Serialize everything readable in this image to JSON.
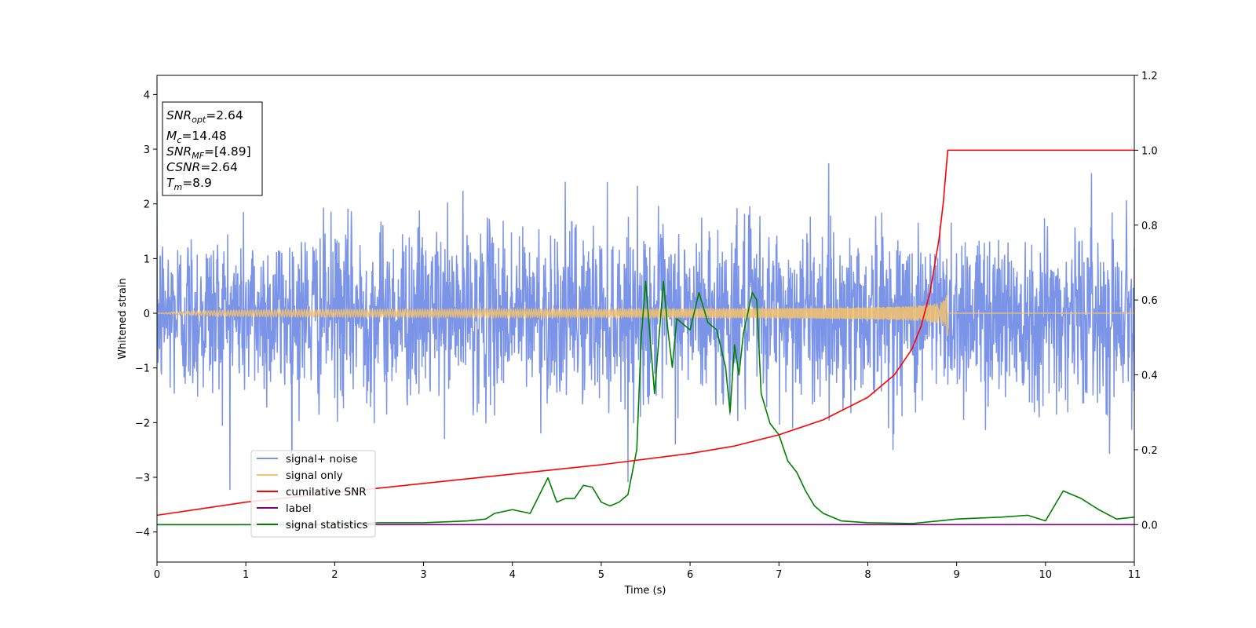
{
  "chart_data": {
    "type": "line",
    "xlabel": "Time (s)",
    "ylabel": "Whitened strain",
    "xlim": [
      0,
      11
    ],
    "ylim": [
      -4.55,
      4.35
    ],
    "y2lim": [
      -0.1,
      1.2
    ],
    "x_ticks": [
      "0",
      "1",
      "2",
      "3",
      "4",
      "5",
      "6",
      "7",
      "8",
      "9",
      "10",
      "11"
    ],
    "y_ticks": [
      "4",
      "3",
      "2",
      "1",
      "0",
      "−1",
      "−2",
      "−3",
      "−4"
    ],
    "y2_ticks": [
      "1.2",
      "1.0",
      "0.8",
      "0.6",
      "0.4",
      "0.2",
      "0.0"
    ],
    "grid": false,
    "legend_position": "lower-left",
    "annotation": {
      "snr_opt": {
        "main": "SNR",
        "sub": "opt",
        "value": "=2.64"
      },
      "mc": {
        "main": "M",
        "sub": "c",
        "value": "=14.48"
      },
      "snr_mf": {
        "main": "SNR",
        "sub": "MF",
        "value": "=[4.89]"
      },
      "csnr": {
        "main": "CSNR",
        "value": "=2.64"
      },
      "tm": {
        "main": "T",
        "sub": "m",
        "value": "=8.9"
      }
    },
    "series": [
      {
        "name": "signal+ noise",
        "color": "#7b94e8",
        "axis": "left",
        "kind": "noise",
        "std": 0.8,
        "clip": [
          -4.2,
          3.95
        ],
        "x_range": [
          0,
          11
        ]
      },
      {
        "name": "signal only",
        "color": "#f5c26b",
        "axis": "left",
        "kind": "chirp",
        "t_merge": 8.9,
        "peak_amplitude": 0.43
      },
      {
        "name": "cumilative SNR",
        "color": "#ff0000",
        "axis": "right",
        "x": [
          0,
          1,
          2,
          3,
          4,
          5,
          6,
          6.5,
          7,
          7.5,
          8,
          8.3,
          8.5,
          8.6,
          8.7,
          8.8,
          8.85,
          8.9,
          8.91,
          11
        ],
        "y": [
          0.025,
          0.06,
          0.085,
          0.11,
          0.135,
          0.16,
          0.19,
          0.21,
          0.24,
          0.28,
          0.34,
          0.4,
          0.47,
          0.53,
          0.62,
          0.76,
          0.86,
          1.0,
          1.0,
          1.0
        ]
      },
      {
        "name": "label",
        "color": "#800080",
        "axis": "right",
        "x": [
          0,
          11
        ],
        "y": [
          0,
          0
        ]
      },
      {
        "name": "signal statistics",
        "color": "#008000",
        "axis": "right",
        "x": [
          0,
          1,
          2,
          2.5,
          3,
          3.5,
          3.7,
          3.8,
          4.0,
          4.2,
          4.4,
          4.5,
          4.6,
          4.7,
          4.8,
          4.9,
          5.0,
          5.1,
          5.2,
          5.3,
          5.4,
          5.45,
          5.5,
          5.6,
          5.7,
          5.75,
          5.8,
          5.85,
          5.9,
          6.0,
          6.1,
          6.2,
          6.3,
          6.4,
          6.45,
          6.5,
          6.55,
          6.6,
          6.7,
          6.75,
          6.8,
          6.9,
          7.0,
          7.1,
          7.2,
          7.3,
          7.4,
          7.5,
          7.7,
          8.0,
          8.5,
          8.8,
          9.0,
          9.5,
          9.8,
          10.0,
          10.2,
          10.4,
          10.6,
          10.8,
          11.0
        ],
        "y": [
          0,
          0,
          0,
          0.005,
          0.005,
          0.01,
          0.015,
          0.03,
          0.04,
          0.03,
          0.125,
          0.06,
          0.07,
          0.07,
          0.105,
          0.1,
          0.06,
          0.05,
          0.06,
          0.08,
          0.2,
          0.5,
          0.65,
          0.35,
          0.65,
          0.52,
          0.42,
          0.55,
          0.54,
          0.52,
          0.62,
          0.54,
          0.52,
          0.42,
          0.3,
          0.48,
          0.4,
          0.51,
          0.62,
          0.6,
          0.35,
          0.27,
          0.24,
          0.17,
          0.14,
          0.09,
          0.05,
          0.03,
          0.01,
          0.005,
          0.003,
          0.01,
          0.015,
          0.02,
          0.025,
          0.01,
          0.09,
          0.07,
          0.04,
          0.015,
          0.02
        ]
      }
    ]
  }
}
